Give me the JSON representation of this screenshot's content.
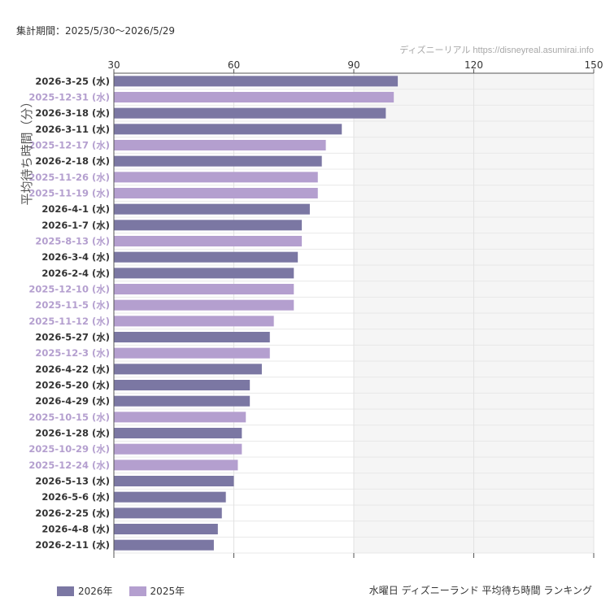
{
  "header": {
    "period": "集計期間：2025/5/30〜2026/5/29",
    "source": "ディズニーリアル https://disneyreal.asumirai.info"
  },
  "footer": {
    "title": "水曜日 ディズニーランド 平均待ち時間 ランキング"
  },
  "colors": {
    "y2026": "#7b77a3",
    "y2025": "#b49fcf",
    "shade": "#f5f5f5"
  },
  "chart_data": {
    "type": "bar",
    "orientation": "horizontal",
    "ylabel": "平均待ち時間（分）",
    "xlim": [
      30,
      150
    ],
    "xticks": [
      30,
      60,
      90,
      120,
      150
    ],
    "shaded_range": [
      90,
      150
    ],
    "grid": true,
    "legend_position": "bottom-left",
    "series": [
      {
        "name": "2026年",
        "color": "#7b77a3"
      },
      {
        "name": "2025年",
        "color": "#b49fcf"
      }
    ],
    "bars": [
      {
        "label": "2026-3-25 (水)",
        "value": 101,
        "series": "2026年"
      },
      {
        "label": "2025-12-31 (水)",
        "value": 100,
        "series": "2025年"
      },
      {
        "label": "2026-3-18 (水)",
        "value": 98,
        "series": "2026年"
      },
      {
        "label": "2026-3-11 (水)",
        "value": 87,
        "series": "2026年"
      },
      {
        "label": "2025-12-17 (水)",
        "value": 83,
        "series": "2025年"
      },
      {
        "label": "2026-2-18 (水)",
        "value": 82,
        "series": "2026年"
      },
      {
        "label": "2025-11-26 (水)",
        "value": 81,
        "series": "2025年"
      },
      {
        "label": "2025-11-19 (水)",
        "value": 81,
        "series": "2025年"
      },
      {
        "label": "2026-4-1 (水)",
        "value": 79,
        "series": "2026年"
      },
      {
        "label": "2026-1-7 (水)",
        "value": 77,
        "series": "2026年"
      },
      {
        "label": "2025-8-13 (水)",
        "value": 77,
        "series": "2025年"
      },
      {
        "label": "2026-3-4 (水)",
        "value": 76,
        "series": "2026年"
      },
      {
        "label": "2026-2-4 (水)",
        "value": 75,
        "series": "2026年"
      },
      {
        "label": "2025-12-10 (水)",
        "value": 75,
        "series": "2025年"
      },
      {
        "label": "2025-11-5 (水)",
        "value": 75,
        "series": "2025年"
      },
      {
        "label": "2025-11-12 (水)",
        "value": 70,
        "series": "2025年"
      },
      {
        "label": "2026-5-27 (水)",
        "value": 69,
        "series": "2026年"
      },
      {
        "label": "2025-12-3 (水)",
        "value": 69,
        "series": "2025年"
      },
      {
        "label": "2026-4-22 (水)",
        "value": 67,
        "series": "2026年"
      },
      {
        "label": "2026-5-20 (水)",
        "value": 64,
        "series": "2026年"
      },
      {
        "label": "2026-4-29 (水)",
        "value": 64,
        "series": "2026年"
      },
      {
        "label": "2025-10-15 (水)",
        "value": 63,
        "series": "2025年"
      },
      {
        "label": "2026-1-28 (水)",
        "value": 62,
        "series": "2026年"
      },
      {
        "label": "2025-10-29 (水)",
        "value": 62,
        "series": "2025年"
      },
      {
        "label": "2025-12-24 (水)",
        "value": 61,
        "series": "2025年"
      },
      {
        "label": "2026-5-13 (水)",
        "value": 60,
        "series": "2026年"
      },
      {
        "label": "2026-5-6 (水)",
        "value": 58,
        "series": "2026年"
      },
      {
        "label": "2026-2-25 (水)",
        "value": 57,
        "series": "2026年"
      },
      {
        "label": "2026-4-8 (水)",
        "value": 56,
        "series": "2026年"
      },
      {
        "label": "2026-2-11 (水)",
        "value": 55,
        "series": "2026年"
      }
    ]
  }
}
